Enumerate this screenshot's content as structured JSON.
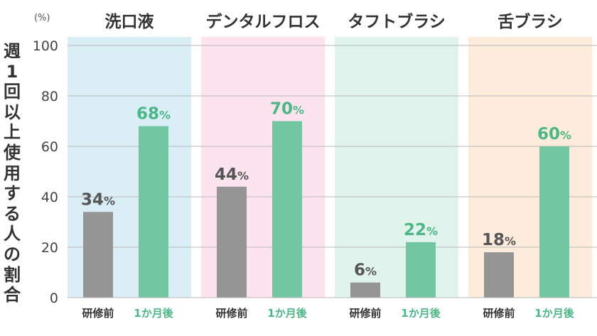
{
  "chart_data": {
    "type": "bar",
    "unit": "(%)",
    "ylabel": "週1回以上使用する人の割合",
    "ylim": [
      0,
      100
    ],
    "yticks": [
      0,
      20,
      40,
      60,
      80,
      100
    ],
    "grid": true,
    "groups": [
      {
        "name": "洗口液",
        "bg": "#daeef6",
        "values": [
          34,
          68
        ]
      },
      {
        "name": "デンタルフロス",
        "bg": "#fde3ee",
        "values": [
          44,
          70
        ]
      },
      {
        "name": "タフトブラシ",
        "bg": "#e0f4ed",
        "values": [
          6,
          22
        ]
      },
      {
        "name": "舌ブラシ",
        "bg": "#fdebdb",
        "values": [
          18,
          60
        ]
      }
    ],
    "series": [
      {
        "name": "研修前",
        "color": "#959595",
        "label_color": "#555555"
      },
      {
        "name": "1か月後",
        "color": "#72c6a1",
        "label_color": "#4cb786"
      }
    ],
    "value_suffix": "%"
  }
}
